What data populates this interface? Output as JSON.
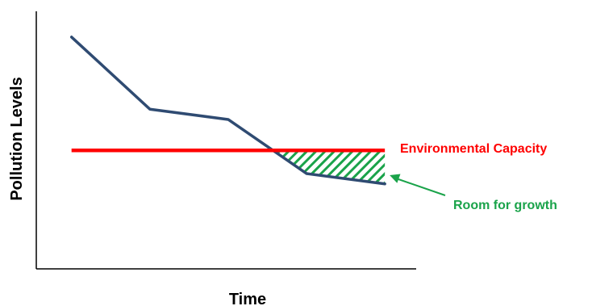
{
  "chart_data": {
    "type": "line",
    "title": "",
    "xlabel": "Time",
    "ylabel": "Pollution Levels",
    "grid": false,
    "legend": "none",
    "series": [
      {
        "name": "",
        "color": "#2f4b72",
        "x": [
          1,
          2,
          3,
          4,
          5
        ],
        "y": [
          90,
          62,
          58,
          37,
          33
        ]
      }
    ],
    "reference_lines": [
      {
        "label": "Environmental Capacity",
        "color": "#ff0000",
        "y": 46,
        "x_range": [
          1,
          5
        ]
      }
    ],
    "shaded_region": {
      "label": "Room for growth",
      "color": "#1aa34a",
      "pattern": "diagonal-hatch",
      "between": "reference line and series",
      "x_range": [
        3.6,
        5
      ]
    },
    "xlim": [
      0.55,
      5.4
    ],
    "ylim": [
      0,
      100
    ]
  }
}
